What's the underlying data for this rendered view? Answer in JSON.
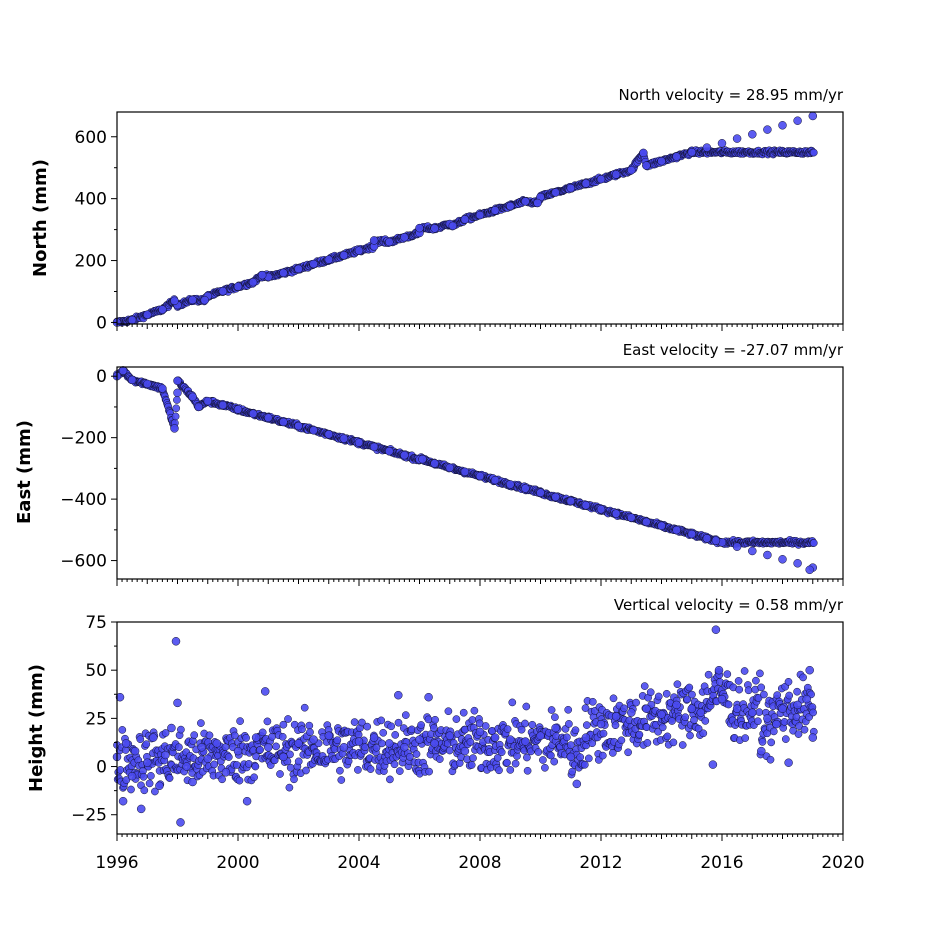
{
  "chart_data": [
    {
      "type": "scatter",
      "title": "North velocity = 28.95 mm/yr",
      "xlabel": "",
      "ylabel": "North (mm)",
      "xlim": [
        1996,
        2020
      ],
      "ylim": [
        -5,
        680
      ],
      "yticks": [
        0,
        200,
        400,
        600
      ],
      "ytick_labels": [
        "0",
        "200",
        "400",
        "600"
      ],
      "series": [
        {
          "points": [
            [
              1996.0,
              0
            ],
            [
              1996.5,
              8
            ],
            [
              1997.0,
              25
            ],
            [
              1997.5,
              42
            ],
            [
              1998.0,
              56
            ],
            [
              1998.5,
              73
            ],
            [
              1999.0,
              85
            ],
            [
              1999.5,
              101
            ],
            [
              2000.0,
              116
            ],
            [
              2000.5,
              130
            ],
            [
              2001.0,
              147
            ],
            [
              2001.5,
              160
            ],
            [
              2002.0,
              173
            ],
            [
              2002.5,
              189
            ],
            [
              2003.0,
              203
            ],
            [
              2003.5,
              217
            ],
            [
              2004.0,
              232
            ],
            [
              2004.5,
              246
            ],
            [
              2005.0,
              260
            ],
            [
              2005.5,
              275
            ],
            [
              2006.0,
              289
            ],
            [
              2006.5,
              304
            ],
            [
              2007.0,
              318
            ],
            [
              2007.5,
              333
            ],
            [
              2008.0,
              347
            ],
            [
              2008.5,
              362
            ],
            [
              2009.0,
              376
            ],
            [
              2009.5,
              391
            ],
            [
              2010.0,
              405
            ],
            [
              2010.5,
              420
            ],
            [
              2011.0,
              434
            ],
            [
              2011.5,
              449
            ],
            [
              2012.0,
              463
            ],
            [
              2012.5,
              478
            ],
            [
              2013.0,
              492
            ],
            [
              2013.5,
              507
            ],
            [
              2014.0,
              521
            ],
            [
              2014.5,
              536
            ],
            [
              2015.0,
              550
            ],
            [
              2015.5,
              565
            ],
            [
              2016.0,
              579
            ],
            [
              2016.5,
              594
            ],
            [
              2017.0,
              608
            ],
            [
              2017.5,
              623
            ],
            [
              2018.0,
              637
            ],
            [
              2018.5,
              652
            ],
            [
              2019.0,
              667
            ],
            [
              1997.9,
              70
            ],
            [
              1998.9,
              72
            ],
            [
              2006.0,
              305
            ],
            [
              2007.1,
              312
            ],
            [
              2009.9,
              386
            ],
            [
              2013.4,
              548
            ],
            [
              2004.5,
              265
            ],
            [
              2000.8,
              153
            ]
          ]
        }
      ],
      "annotation": "North velocity = 28.95 mm/yr"
    },
    {
      "type": "scatter",
      "title": "East velocity = -27.07 mm/yr",
      "xlabel": "",
      "ylabel": "East (mm)",
      "xlim": [
        1996,
        2020
      ],
      "ylim": [
        -660,
        30
      ],
      "yticks": [
        0,
        -200,
        -400,
        -600
      ],
      "ytick_labels": [
        "0",
        "−200",
        "−400",
        "−600"
      ],
      "series": [
        {
          "points": [
            [
              1996.0,
              0
            ],
            [
              1996.5,
              -12
            ],
            [
              1997.0,
              -25
            ],
            [
              1997.5,
              -40
            ],
            [
              1998.0,
              -54
            ],
            [
              1998.5,
              -67
            ],
            [
              1999.0,
              -81
            ],
            [
              1999.5,
              -94
            ],
            [
              2000.0,
              -108
            ],
            [
              2000.5,
              -122
            ],
            [
              2001.0,
              -135
            ],
            [
              2001.5,
              -149
            ],
            [
              2002.0,
              -162
            ],
            [
              2002.5,
              -176
            ],
            [
              2003.0,
              -189
            ],
            [
              2003.5,
              -203
            ],
            [
              2004.0,
              -216
            ],
            [
              2004.5,
              -230
            ],
            [
              2005.0,
              -244
            ],
            [
              2005.5,
              -257
            ],
            [
              2006.0,
              -271
            ],
            [
              2006.5,
              -284
            ],
            [
              2007.0,
              -298
            ],
            [
              2007.5,
              -311
            ],
            [
              2008.0,
              -325
            ],
            [
              2008.5,
              -338
            ],
            [
              2009.0,
              -352
            ],
            [
              2009.5,
              -365
            ],
            [
              2010.0,
              -379
            ],
            [
              2010.5,
              -393
            ],
            [
              2011.0,
              -406
            ],
            [
              2011.5,
              -420
            ],
            [
              2012.0,
              -433
            ],
            [
              2012.5,
              -447
            ],
            [
              2013.0,
              -460
            ],
            [
              2013.5,
              -474
            ],
            [
              2014.0,
              -487
            ],
            [
              2014.5,
              -501
            ],
            [
              2015.0,
              -514
            ],
            [
              2015.5,
              -528
            ],
            [
              2016.0,
              -541
            ],
            [
              2016.5,
              -555
            ],
            [
              2017.0,
              -569
            ],
            [
              2017.5,
              -582
            ],
            [
              2018.0,
              -596
            ],
            [
              2018.5,
              -609
            ],
            [
              2019.0,
              -623
            ],
            [
              1996.2,
              18
            ],
            [
              1997.9,
              -170
            ],
            [
              1998.0,
              -15
            ],
            [
              1998.7,
              -100
            ],
            [
              2006.1,
              -270
            ],
            [
              2015.8,
              -535
            ],
            [
              2018.9,
              -630
            ]
          ]
        }
      ],
      "annotation": "East velocity = -27.07 mm/yr"
    },
    {
      "type": "scatter",
      "title": "Vertical velocity = 0.58 mm/yr",
      "xlabel": "",
      "ylabel": "Height (mm)",
      "xlim": [
        1996,
        2020
      ],
      "ylim": [
        -35,
        75
      ],
      "yticks": [
        75,
        50,
        25,
        0,
        -25
      ],
      "ytick_labels": [
        "75",
        "50",
        "25",
        "0",
        "−25"
      ],
      "series": [
        {
          "points": [
            [
              1996.0,
              5
            ],
            [
              1996.1,
              36
            ],
            [
              1996.2,
              -18
            ],
            [
              1996.3,
              12
            ],
            [
              1996.5,
              -5
            ],
            [
              1996.6,
              8
            ],
            [
              1996.8,
              -22
            ],
            [
              1997.0,
              2
            ],
            [
              1997.2,
              15
            ],
            [
              1997.4,
              -10
            ],
            [
              1997.6,
              6
            ],
            [
              1997.8,
              20
            ],
            [
              1997.95,
              65
            ],
            [
              1998.0,
              33
            ],
            [
              1998.1,
              -29
            ],
            [
              1998.3,
              0
            ],
            [
              1998.5,
              -8
            ],
            [
              1998.8,
              10
            ],
            [
              1999.0,
              4
            ],
            [
              1999.3,
              12
            ],
            [
              1999.6,
              -3
            ],
            [
              2000.0,
              8
            ],
            [
              2000.3,
              -18
            ],
            [
              2000.6,
              15
            ],
            [
              2000.9,
              39
            ],
            [
              2001.0,
              10
            ],
            [
              2001.5,
              5
            ],
            [
              2002.0,
              12
            ],
            [
              2002.5,
              14
            ],
            [
              2003.0,
              16
            ],
            [
              2003.5,
              10
            ],
            [
              2004.0,
              13
            ],
            [
              2004.5,
              15
            ],
            [
              2005.0,
              12
            ],
            [
              2005.3,
              37
            ],
            [
              2005.5,
              10
            ],
            [
              2006.0,
              14
            ],
            [
              2006.3,
              36
            ],
            [
              2006.5,
              12
            ],
            [
              2007.0,
              16
            ],
            [
              2007.5,
              8
            ],
            [
              2008.0,
              18
            ],
            [
              2008.5,
              15
            ],
            [
              2009.0,
              14
            ],
            [
              2009.5,
              13
            ],
            [
              2010.0,
              16
            ],
            [
              2010.5,
              20
            ],
            [
              2011.0,
              5
            ],
            [
              2011.2,
              -9
            ],
            [
              2011.5,
              15
            ],
            [
              2012.0,
              22
            ],
            [
              2012.5,
              26
            ],
            [
              2013.0,
              28
            ],
            [
              2013.5,
              30
            ],
            [
              2014.0,
              27
            ],
            [
              2014.5,
              32
            ],
            [
              2015.0,
              30
            ],
            [
              2015.3,
              28
            ],
            [
              2015.7,
              1
            ],
            [
              2015.8,
              71
            ],
            [
              2015.9,
              50
            ],
            [
              2016.0,
              35
            ],
            [
              2016.5,
              30
            ],
            [
              2017.0,
              28
            ],
            [
              2017.3,
              8
            ],
            [
              2017.5,
              25
            ],
            [
              2017.8,
              22
            ],
            [
              2018.0,
              30
            ],
            [
              2018.2,
              2
            ],
            [
              2018.5,
              32
            ],
            [
              2018.8,
              35
            ],
            [
              2018.9,
              50
            ],
            [
              2019.0,
              15
            ]
          ]
        }
      ],
      "annotation": "Vertical velocity = 0.58 mm/yr"
    }
  ],
  "xaxis": {
    "ticks": [
      1996,
      2000,
      2004,
      2008,
      2012,
      2016,
      2020
    ],
    "tick_labels": [
      "1996",
      "2000",
      "2004",
      "2008",
      "2012",
      "2016",
      "2020"
    ]
  },
  "colors": {
    "marker_fill": "#4a4af0",
    "marker_edge": "#101030"
  }
}
